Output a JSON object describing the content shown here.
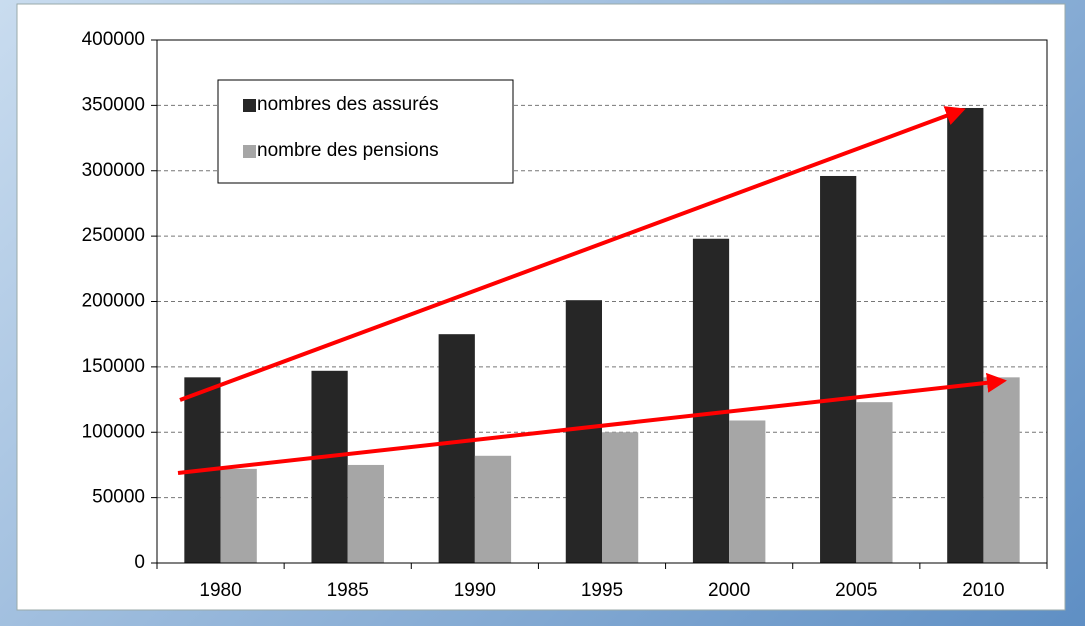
{
  "chart_data": {
    "type": "bar",
    "categories": [
      "1980",
      "1985",
      "1990",
      "1995",
      "2000",
      "2005",
      "2010"
    ],
    "series": [
      {
        "name": "nombres des assurés",
        "color": "#262626",
        "values": [
          142000,
          147000,
          175000,
          201000,
          248000,
          296000,
          348000
        ]
      },
      {
        "name": "nombre des pensions",
        "color": "#a6a6a6",
        "values": [
          72000,
          75000,
          82000,
          100000,
          109000,
          123000,
          142000
        ]
      }
    ],
    "ylim": [
      0,
      400000
    ],
    "yticks": [
      0,
      50000,
      100000,
      150000,
      200000,
      250000,
      300000,
      350000,
      400000
    ],
    "grid": true,
    "legend": "top-left"
  }
}
